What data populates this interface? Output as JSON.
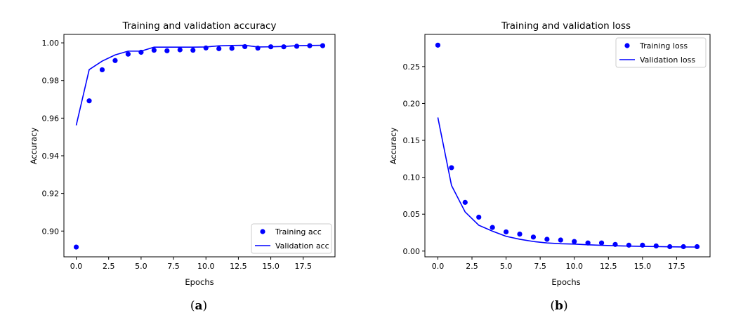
{
  "chart_data": [
    {
      "type": "line",
      "panel_label": "(a)",
      "panel_letter": "a",
      "title": "Training and validation accuracy",
      "xlabel": "Epochs",
      "ylabel": "Accuracy",
      "xlim": [
        -0.95,
        19.95
      ],
      "ylim": [
        0.8863,
        1.0045
      ],
      "xticks": [
        0.0,
        2.5,
        5.0,
        7.5,
        10.0,
        12.5,
        15.0,
        17.5
      ],
      "xtick_labels": [
        "0.0",
        "2.5",
        "5.0",
        "7.5",
        "10.0",
        "12.5",
        "15.0",
        "17.5"
      ],
      "yticks": [
        0.9,
        0.92,
        0.94,
        0.96,
        0.98,
        1.0
      ],
      "ytick_labels": [
        "0.90",
        "0.92",
        "0.94",
        "0.96",
        "0.98",
        "1.00"
      ],
      "grid": false,
      "legend_position": "lower right",
      "x": [
        0,
        1,
        2,
        3,
        4,
        5,
        6,
        7,
        8,
        9,
        10,
        11,
        12,
        13,
        14,
        15,
        16,
        17,
        18,
        19
      ],
      "series": [
        {
          "name": "Training acc",
          "style": "points",
          "color": "#0000ff",
          "values": [
            0.8915,
            0.9692,
            0.9857,
            0.9906,
            0.994,
            0.995,
            0.9961,
            0.9958,
            0.9963,
            0.9961,
            0.9973,
            0.9969,
            0.9971,
            0.998,
            0.9972,
            0.9979,
            0.9979,
            0.9982,
            0.9985,
            0.9985
          ]
        },
        {
          "name": "Validation acc",
          "style": "line",
          "color": "#0000ff",
          "values": [
            0.9562,
            0.9858,
            0.9903,
            0.9936,
            0.9956,
            0.9956,
            0.9977,
            0.9977,
            0.9977,
            0.9977,
            0.9978,
            0.9984,
            0.9986,
            0.9987,
            0.9978,
            0.9979,
            0.9981,
            0.9985,
            0.9986,
            0.9987
          ]
        }
      ]
    },
    {
      "type": "line",
      "panel_label": "(b)",
      "panel_letter": "b",
      "title": "Training and validation loss",
      "xlabel": "Epochs",
      "ylabel": "Accuracy",
      "xlim": [
        -0.95,
        19.95
      ],
      "ylim": [
        -0.0078,
        0.2936
      ],
      "xticks": [
        0.0,
        2.5,
        5.0,
        7.5,
        10.0,
        12.5,
        15.0,
        17.5
      ],
      "xtick_labels": [
        "0.0",
        "2.5",
        "5.0",
        "7.5",
        "10.0",
        "12.5",
        "15.0",
        "17.5"
      ],
      "yticks": [
        0.0,
        0.05,
        0.1,
        0.15,
        0.2,
        0.25
      ],
      "ytick_labels": [
        "0.00",
        "0.05",
        "0.10",
        "0.15",
        "0.20",
        "0.25"
      ],
      "grid": false,
      "legend_position": "upper right",
      "x": [
        0,
        1,
        2,
        3,
        4,
        5,
        6,
        7,
        8,
        9,
        10,
        11,
        12,
        13,
        14,
        15,
        16,
        17,
        18,
        19
      ],
      "series": [
        {
          "name": "Training loss",
          "style": "points",
          "color": "#0000ff",
          "values": [
            0.279,
            0.113,
            0.066,
            0.046,
            0.032,
            0.026,
            0.023,
            0.019,
            0.016,
            0.015,
            0.013,
            0.011,
            0.011,
            0.009,
            0.008,
            0.008,
            0.007,
            0.006,
            0.006,
            0.006
          ]
        },
        {
          "name": "Validation loss",
          "style": "line",
          "color": "#0000ff",
          "values": [
            0.181,
            0.089,
            0.053,
            0.035,
            0.027,
            0.02,
            0.016,
            0.013,
            0.011,
            0.01,
            0.0095,
            0.0085,
            0.0078,
            0.0072,
            0.0068,
            0.0064,
            0.0061,
            0.0058,
            0.0056,
            0.0055
          ]
        }
      ]
    }
  ]
}
